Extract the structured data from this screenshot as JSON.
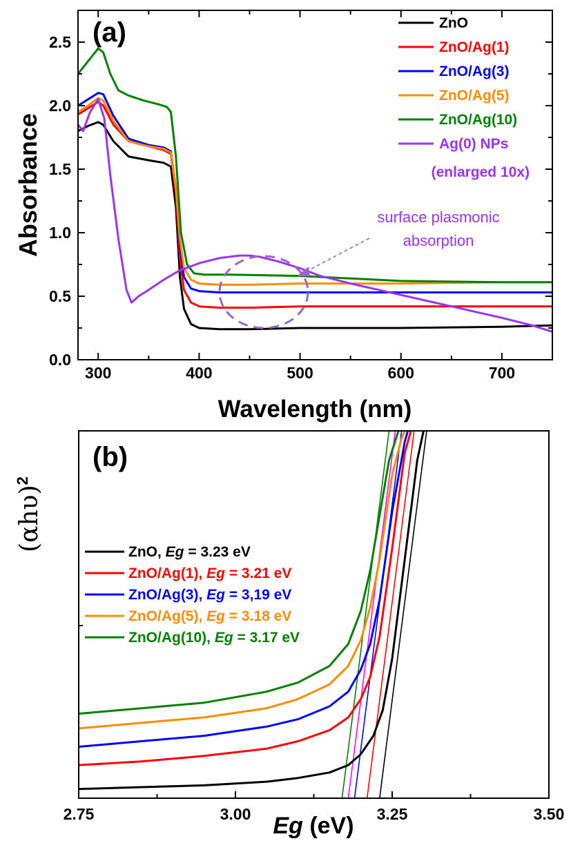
{
  "chart_data": [
    {
      "panel_label": "(a)",
      "type": "line",
      "xlabel": "Wavelength (nm)",
      "ylabel": "Absorbance",
      "xlim": [
        280,
        750
      ],
      "ylim": [
        0,
        2.75
      ],
      "xticks": [
        300,
        400,
        500,
        600,
        700
      ],
      "yticks": [
        0.0,
        0.5,
        1.0,
        1.5,
        2.0,
        2.5
      ],
      "ytick_labels": [
        "0.0",
        "0.5",
        "1.0",
        "1.5",
        "2.0",
        "2.5"
      ],
      "legend_position": "top-right",
      "series": [
        {
          "name": "ZnO",
          "color": "#000000",
          "x": [
            280,
            290,
            300,
            305,
            315,
            330,
            350,
            365,
            372,
            377,
            381,
            385,
            392,
            400,
            420,
            450,
            500,
            600,
            700,
            750
          ],
          "y": [
            1.8,
            1.84,
            1.87,
            1.85,
            1.72,
            1.6,
            1.57,
            1.55,
            1.52,
            1.2,
            0.65,
            0.4,
            0.28,
            0.25,
            0.24,
            0.24,
            0.25,
            0.25,
            0.26,
            0.27
          ]
        },
        {
          "name": "ZnO/Ag(1)",
          "color": "#ff0000",
          "x": [
            280,
            290,
            300,
            305,
            315,
            330,
            350,
            365,
            372,
            377,
            381,
            385,
            392,
            400,
            420,
            450,
            500,
            600,
            700,
            750
          ],
          "y": [
            1.93,
            1.98,
            2.03,
            2.0,
            1.85,
            1.72,
            1.68,
            1.65,
            1.62,
            1.3,
            0.8,
            0.55,
            0.45,
            0.42,
            0.41,
            0.41,
            0.42,
            0.42,
            0.42,
            0.42
          ]
        },
        {
          "name": "ZnO/Ag(3)",
          "color": "#0000ff",
          "x": [
            280,
            290,
            300,
            305,
            315,
            330,
            350,
            365,
            372,
            377,
            381,
            385,
            392,
            400,
            420,
            450,
            500,
            600,
            700,
            750
          ],
          "y": [
            2.0,
            2.05,
            2.1,
            2.09,
            1.92,
            1.74,
            1.69,
            1.67,
            1.64,
            1.35,
            0.9,
            0.65,
            0.56,
            0.54,
            0.53,
            0.53,
            0.53,
            0.53,
            0.53,
            0.53
          ]
        },
        {
          "name": "ZnO/Ag(5)",
          "color": "#ff8c00",
          "x": [
            280,
            290,
            300,
            305,
            315,
            330,
            350,
            365,
            372,
            377,
            381,
            385,
            392,
            400,
            420,
            450,
            500,
            600,
            700,
            750
          ],
          "y": [
            1.95,
            2.0,
            2.06,
            2.04,
            1.88,
            1.72,
            1.68,
            1.66,
            1.63,
            1.35,
            0.95,
            0.72,
            0.63,
            0.6,
            0.59,
            0.59,
            0.6,
            0.6,
            0.61,
            0.61
          ]
        },
        {
          "name": "ZnO/Ag(10)",
          "color": "#008000",
          "x": [
            280,
            290,
            300,
            305,
            312,
            320,
            330,
            345,
            360,
            368,
            372,
            377,
            382,
            388,
            395,
            405,
            430,
            500,
            600,
            700,
            750
          ],
          "y": [
            2.25,
            2.35,
            2.45,
            2.42,
            2.25,
            2.12,
            2.08,
            2.04,
            2.01,
            1.99,
            1.95,
            1.6,
            1.0,
            0.75,
            0.68,
            0.67,
            0.67,
            0.66,
            0.62,
            0.61,
            0.61
          ]
        },
        {
          "name": "Ag(0) NPs",
          "color": "#9933ff",
          "x": [
            280,
            285,
            292,
            300,
            306,
            312,
            320,
            328,
            333,
            340,
            350,
            365,
            380,
            400,
            420,
            440,
            450,
            460,
            480,
            500,
            520,
            550,
            600,
            650,
            700,
            730,
            750
          ],
          "y": [
            1.85,
            1.8,
            1.95,
            2.05,
            1.9,
            1.45,
            0.95,
            0.55,
            0.45,
            0.5,
            0.55,
            0.63,
            0.7,
            0.76,
            0.8,
            0.82,
            0.82,
            0.81,
            0.77,
            0.72,
            0.66,
            0.6,
            0.51,
            0.42,
            0.33,
            0.27,
            0.22
          ]
        }
      ],
      "legend_extra": "(enlarged 10x)",
      "annotation": {
        "text_line1": "surface plasmonic",
        "text_line2": "absorption",
        "color": "#9933ff"
      }
    },
    {
      "panel_label": "(b)",
      "type": "line",
      "xlabel": "Eg (eV)",
      "ylabel": "(αhυ)2",
      "xlim": [
        2.75,
        3.5
      ],
      "xticks": [
        2.75,
        3.0,
        3.25,
        3.5
      ],
      "xtick_labels": [
        "2.75",
        "3.00",
        "3.25",
        "3.50"
      ],
      "ylim": [
        0,
        100
      ],
      "legend_position": "center-left",
      "series": [
        {
          "name": "ZnO",
          "eg_prefix": ", ",
          "eg_label": "Eg",
          "eg_value": " = 3.23 eV",
          "color": "#000000",
          "eg": 3.23,
          "x": [
            2.75,
            2.85,
            2.95,
            3.05,
            3.1,
            3.15,
            3.18,
            3.2,
            3.22,
            3.235,
            3.25,
            3.27,
            3.29,
            3.3
          ],
          "y": [
            2.5,
            3.0,
            3.5,
            4.5,
            5.5,
            7.0,
            9.0,
            12,
            17,
            24,
            38,
            65,
            92,
            100
          ]
        },
        {
          "name": "ZnO/Ag(1)",
          "eg_prefix": ", ",
          "eg_label": "Eg",
          "eg_value": " = 3.21 eV",
          "color": "#ff0000",
          "eg": 3.21,
          "x": [
            2.75,
            2.85,
            2.95,
            3.05,
            3.1,
            3.15,
            3.18,
            3.2,
            3.215,
            3.23,
            3.25,
            3.27,
            3.28
          ],
          "y": [
            9,
            10,
            11.5,
            13.5,
            15.5,
            18.5,
            22,
            27,
            33,
            44,
            68,
            94,
            100
          ]
        },
        {
          "name": "ZnO/Ag(3)",
          "eg_prefix": ", ",
          "eg_label": "Eg",
          "eg_value": " = 3,19 eV",
          "color": "#0000ff",
          "eg": 3.19,
          "x": [
            2.75,
            2.85,
            2.95,
            3.05,
            3.1,
            3.15,
            3.18,
            3.2,
            3.215,
            3.23,
            3.25,
            3.27,
            3.275
          ],
          "y": [
            14,
            15.5,
            17,
            19.5,
            21.5,
            25,
            29,
            35,
            42,
            54,
            78,
            97,
            100
          ]
        },
        {
          "name": "ZnO/Ag(5)",
          "eg_prefix": ", ",
          "eg_label": "Eg",
          "eg_value": " = 3.18 eV",
          "color": "#ff8c00",
          "eg": 3.18,
          "x": [
            2.75,
            2.85,
            2.95,
            3.05,
            3.1,
            3.15,
            3.18,
            3.2,
            3.215,
            3.23,
            3.25,
            3.265,
            3.27
          ],
          "y": [
            19,
            20.5,
            22,
            24.5,
            27,
            31,
            36,
            43,
            52,
            65,
            88,
            98,
            100
          ]
        },
        {
          "name": "ZnO/Ag(10)",
          "eg_prefix": ", ",
          "eg_label": "Eg",
          "eg_value": " = 3.17 eV",
          "color": "#008000",
          "eg": 3.17,
          "x": [
            2.75,
            2.85,
            2.95,
            3.05,
            3.1,
            3.15,
            3.18,
            3.2,
            3.215,
            3.23,
            3.245,
            3.26
          ],
          "y": [
            23,
            24.5,
            26,
            29,
            31.5,
            36,
            42,
            51,
            62,
            77,
            92,
            100
          ]
        }
      ],
      "fit_colors": [
        "#000000",
        "#ff0000",
        "#0000ff",
        "#ff00ff",
        "#008000"
      ]
    }
  ]
}
